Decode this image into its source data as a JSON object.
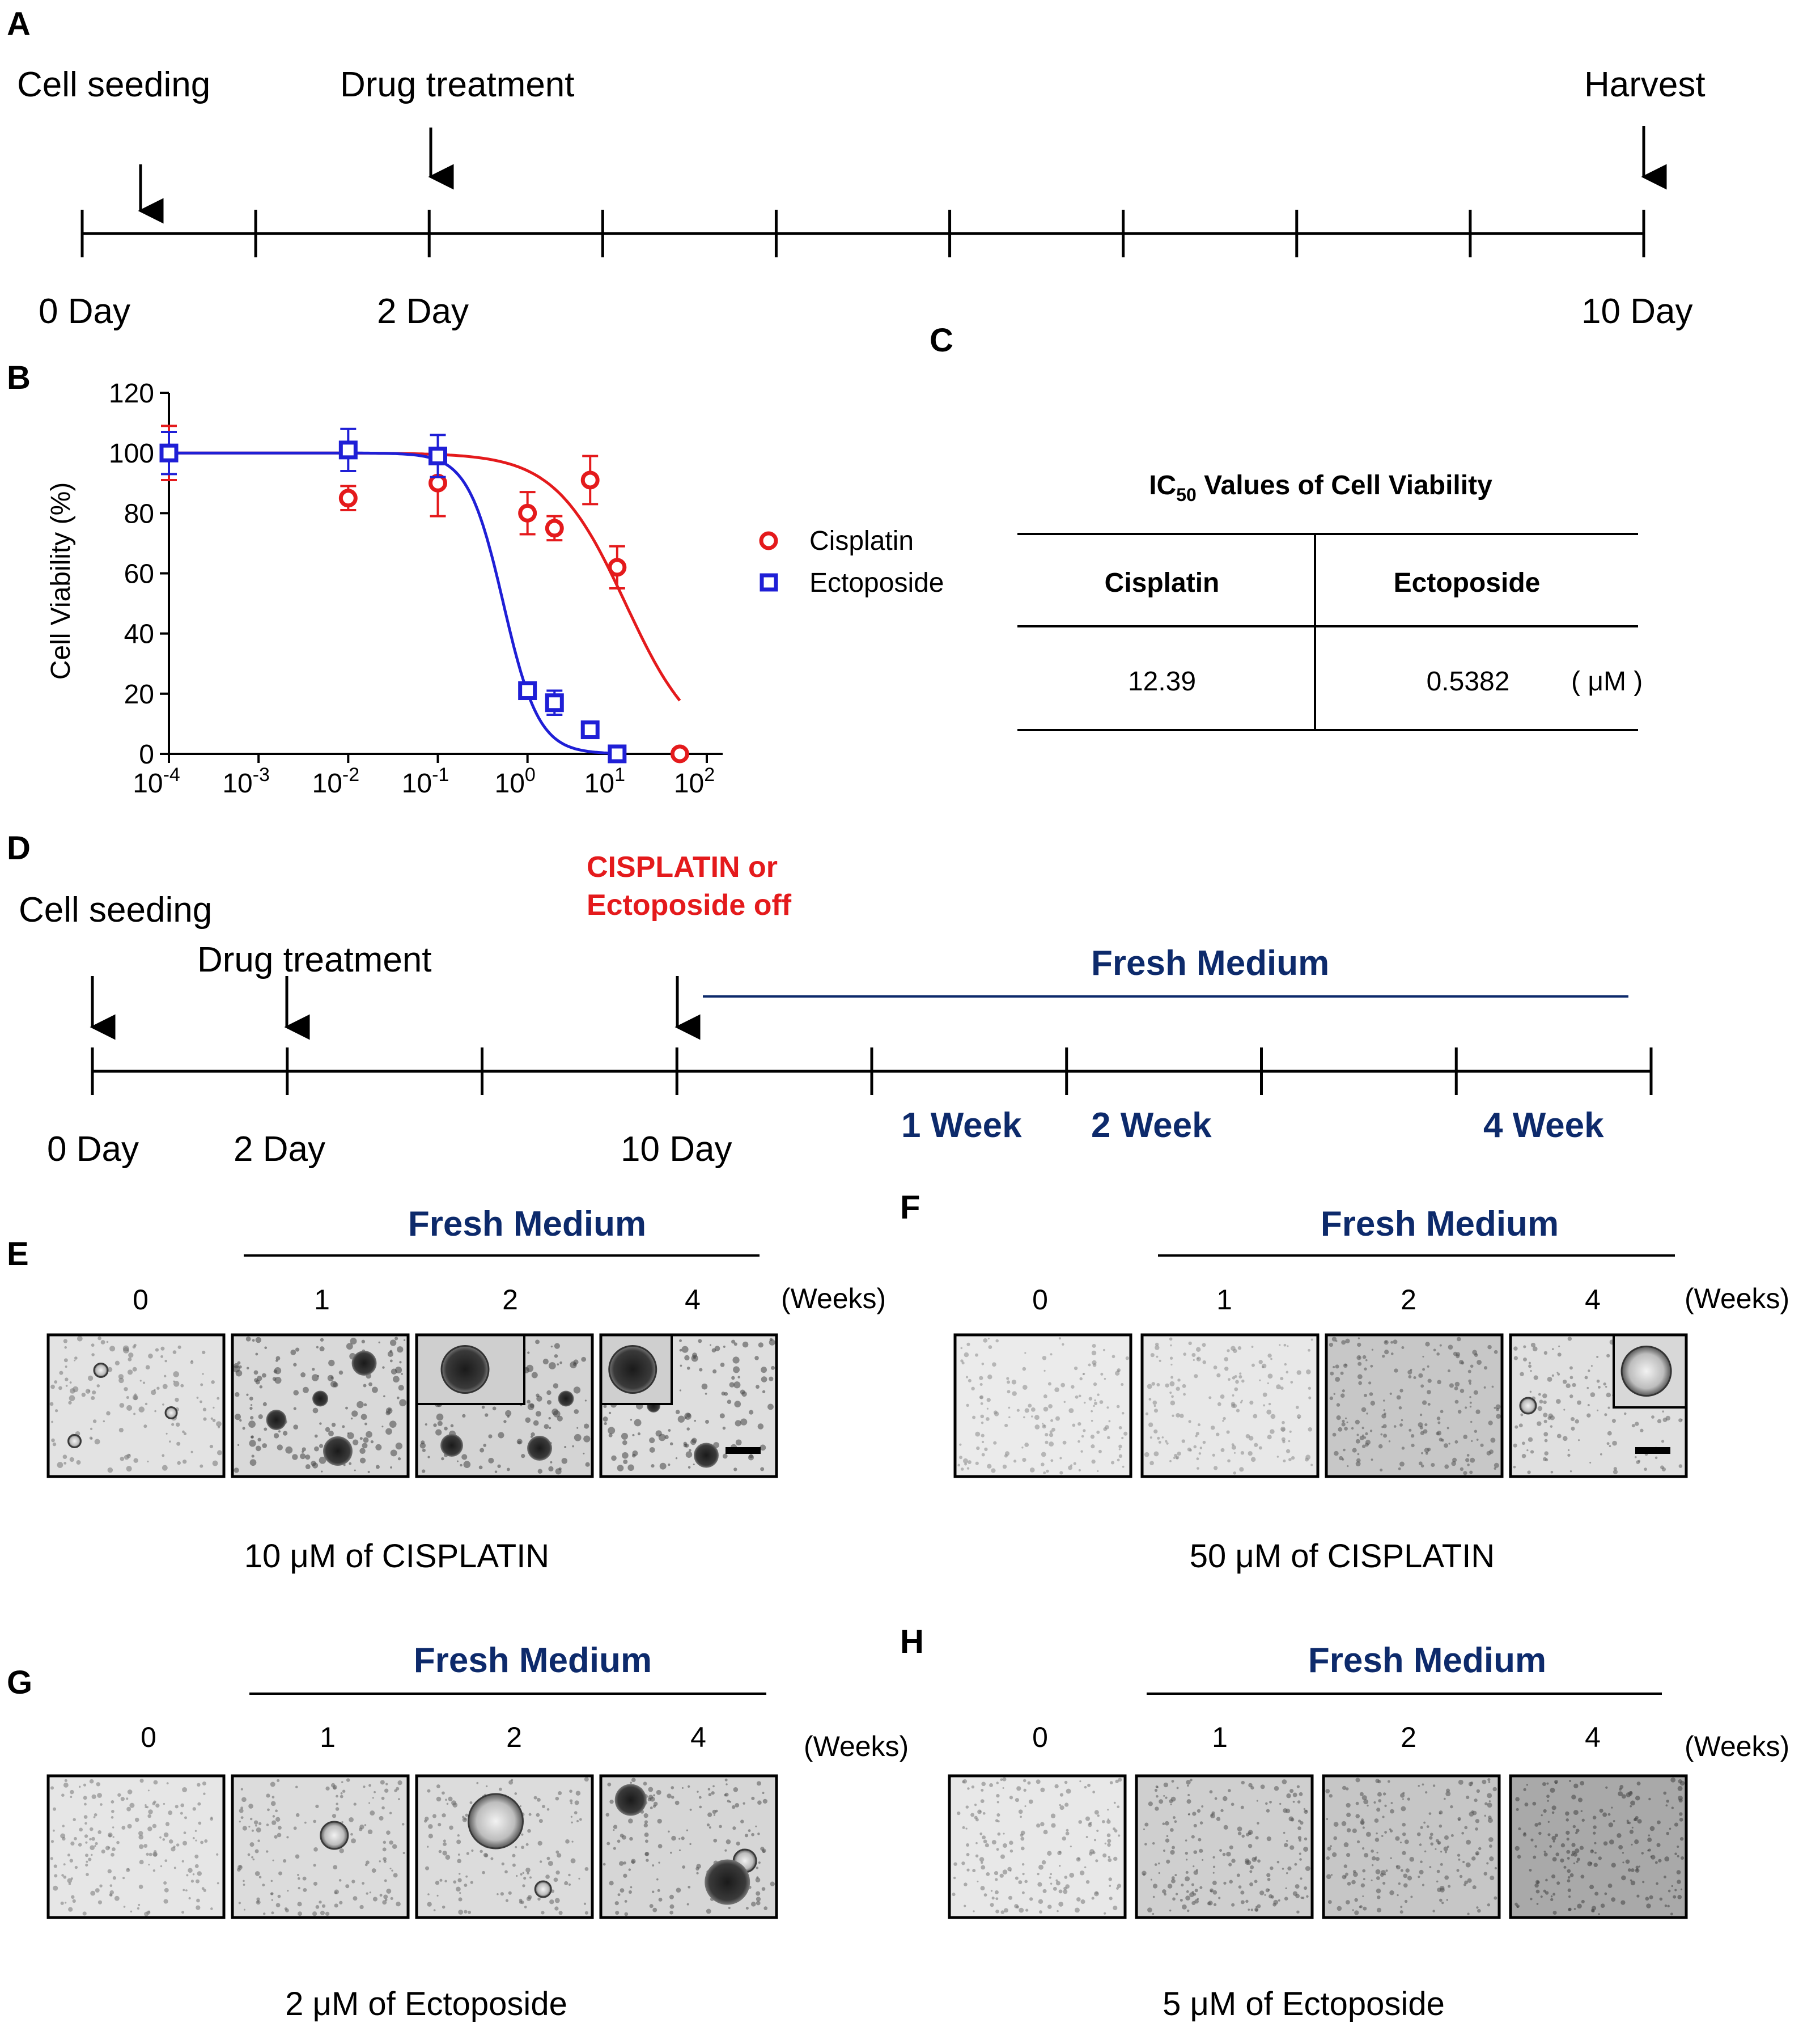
{
  "panel_a": {
    "letter": "A",
    "label_seeding": "Cell seeding",
    "label_treatment": "Drug treatment",
    "label_harvest": "Harvest",
    "day_0": "0 Day",
    "day_2": "2 Day",
    "day_10": "10 Day"
  },
  "panel_b": {
    "letter": "B",
    "ylabel": "Cell Viability (%)",
    "legend_cisplatin": "Cisplatin",
    "legend_ectoposide": "Ectoposide",
    "y_ticks": [
      "0",
      "20",
      "40",
      "60",
      "80",
      "100",
      "120"
    ],
    "x_ticks": [
      {
        "base": "10",
        "exp": "-4"
      },
      {
        "base": "10",
        "exp": "-3"
      },
      {
        "base": "10",
        "exp": "-2"
      },
      {
        "base": "10",
        "exp": "-1"
      },
      {
        "base": "10",
        "exp": "0"
      },
      {
        "base": "10",
        "exp": "1"
      },
      {
        "base": "10",
        "exp": "2"
      }
    ]
  },
  "chart_data": {
    "type": "scatter",
    "title": "",
    "xlabel": "",
    "ylabel": "Cell Viability (%)",
    "x_scale": "log",
    "xlim": [
      0.0001,
      100
    ],
    "ylim": [
      0,
      120
    ],
    "legend_position": "right",
    "series": [
      {
        "name": "Cisplatin",
        "color": "#e41a1c",
        "marker": "circle",
        "x": [
          0.0001,
          0.01,
          0.1,
          1,
          2,
          5,
          10,
          50
        ],
        "y": [
          100,
          85,
          90,
          80,
          75,
          91,
          62,
          0
        ],
        "err": [
          9,
          4,
          11,
          7,
          4,
          8,
          7,
          0
        ],
        "fit_ic50": 12.39,
        "fit_hill": -1.1
      },
      {
        "name": "Ectoposide",
        "color": "#1f1fd6",
        "marker": "square",
        "x": [
          0.0001,
          0.01,
          0.1,
          1,
          2,
          5,
          10
        ],
        "y": [
          100,
          101,
          99,
          21,
          17,
          8,
          0
        ],
        "err": [
          7,
          7,
          7,
          2,
          4,
          2,
          0
        ],
        "fit_ic50": 0.5382,
        "fit_hill": -2.2
      }
    ]
  },
  "panel_c": {
    "letter": "C",
    "title_prefix": "IC",
    "title_sub": "50",
    "title_suffix": " Values of Cell Viability",
    "col_cisplatin": "Cisplatin",
    "col_ectoposide": "Ectoposide",
    "val_cisplatin": "12.39",
    "val_ectoposide": "0.5382",
    "unit": "( μM )"
  },
  "panel_d": {
    "letter": "D",
    "drug_off_line1": "CISPLATIN or",
    "drug_off_line2": "Ectoposide off",
    "label_seeding": "Cell seeding",
    "label_treatment": "Drug treatment",
    "fresh_medium": "Fresh Medium",
    "day_0": "0 Day",
    "day_2": "2 Day",
    "day_10": "10 Day",
    "week_1": "1 Week",
    "week_2": "2 Week",
    "week_4": "4 Week"
  },
  "image_panels": {
    "weeks_label": "(Weeks)",
    "fresh_medium": "Fresh Medium",
    "week_0": "0",
    "week_1": "1",
    "week_2": "2",
    "week_4": "4",
    "e": {
      "letter": "E",
      "caption": "10 μM of CISPLATIN"
    },
    "f": {
      "letter": "F",
      "caption": "50 μM of CISPLATIN"
    },
    "g": {
      "letter": "G",
      "caption": "2 μM of Ectoposide"
    },
    "h": {
      "letter": "H",
      "caption": "5 μM of Ectoposide"
    }
  }
}
